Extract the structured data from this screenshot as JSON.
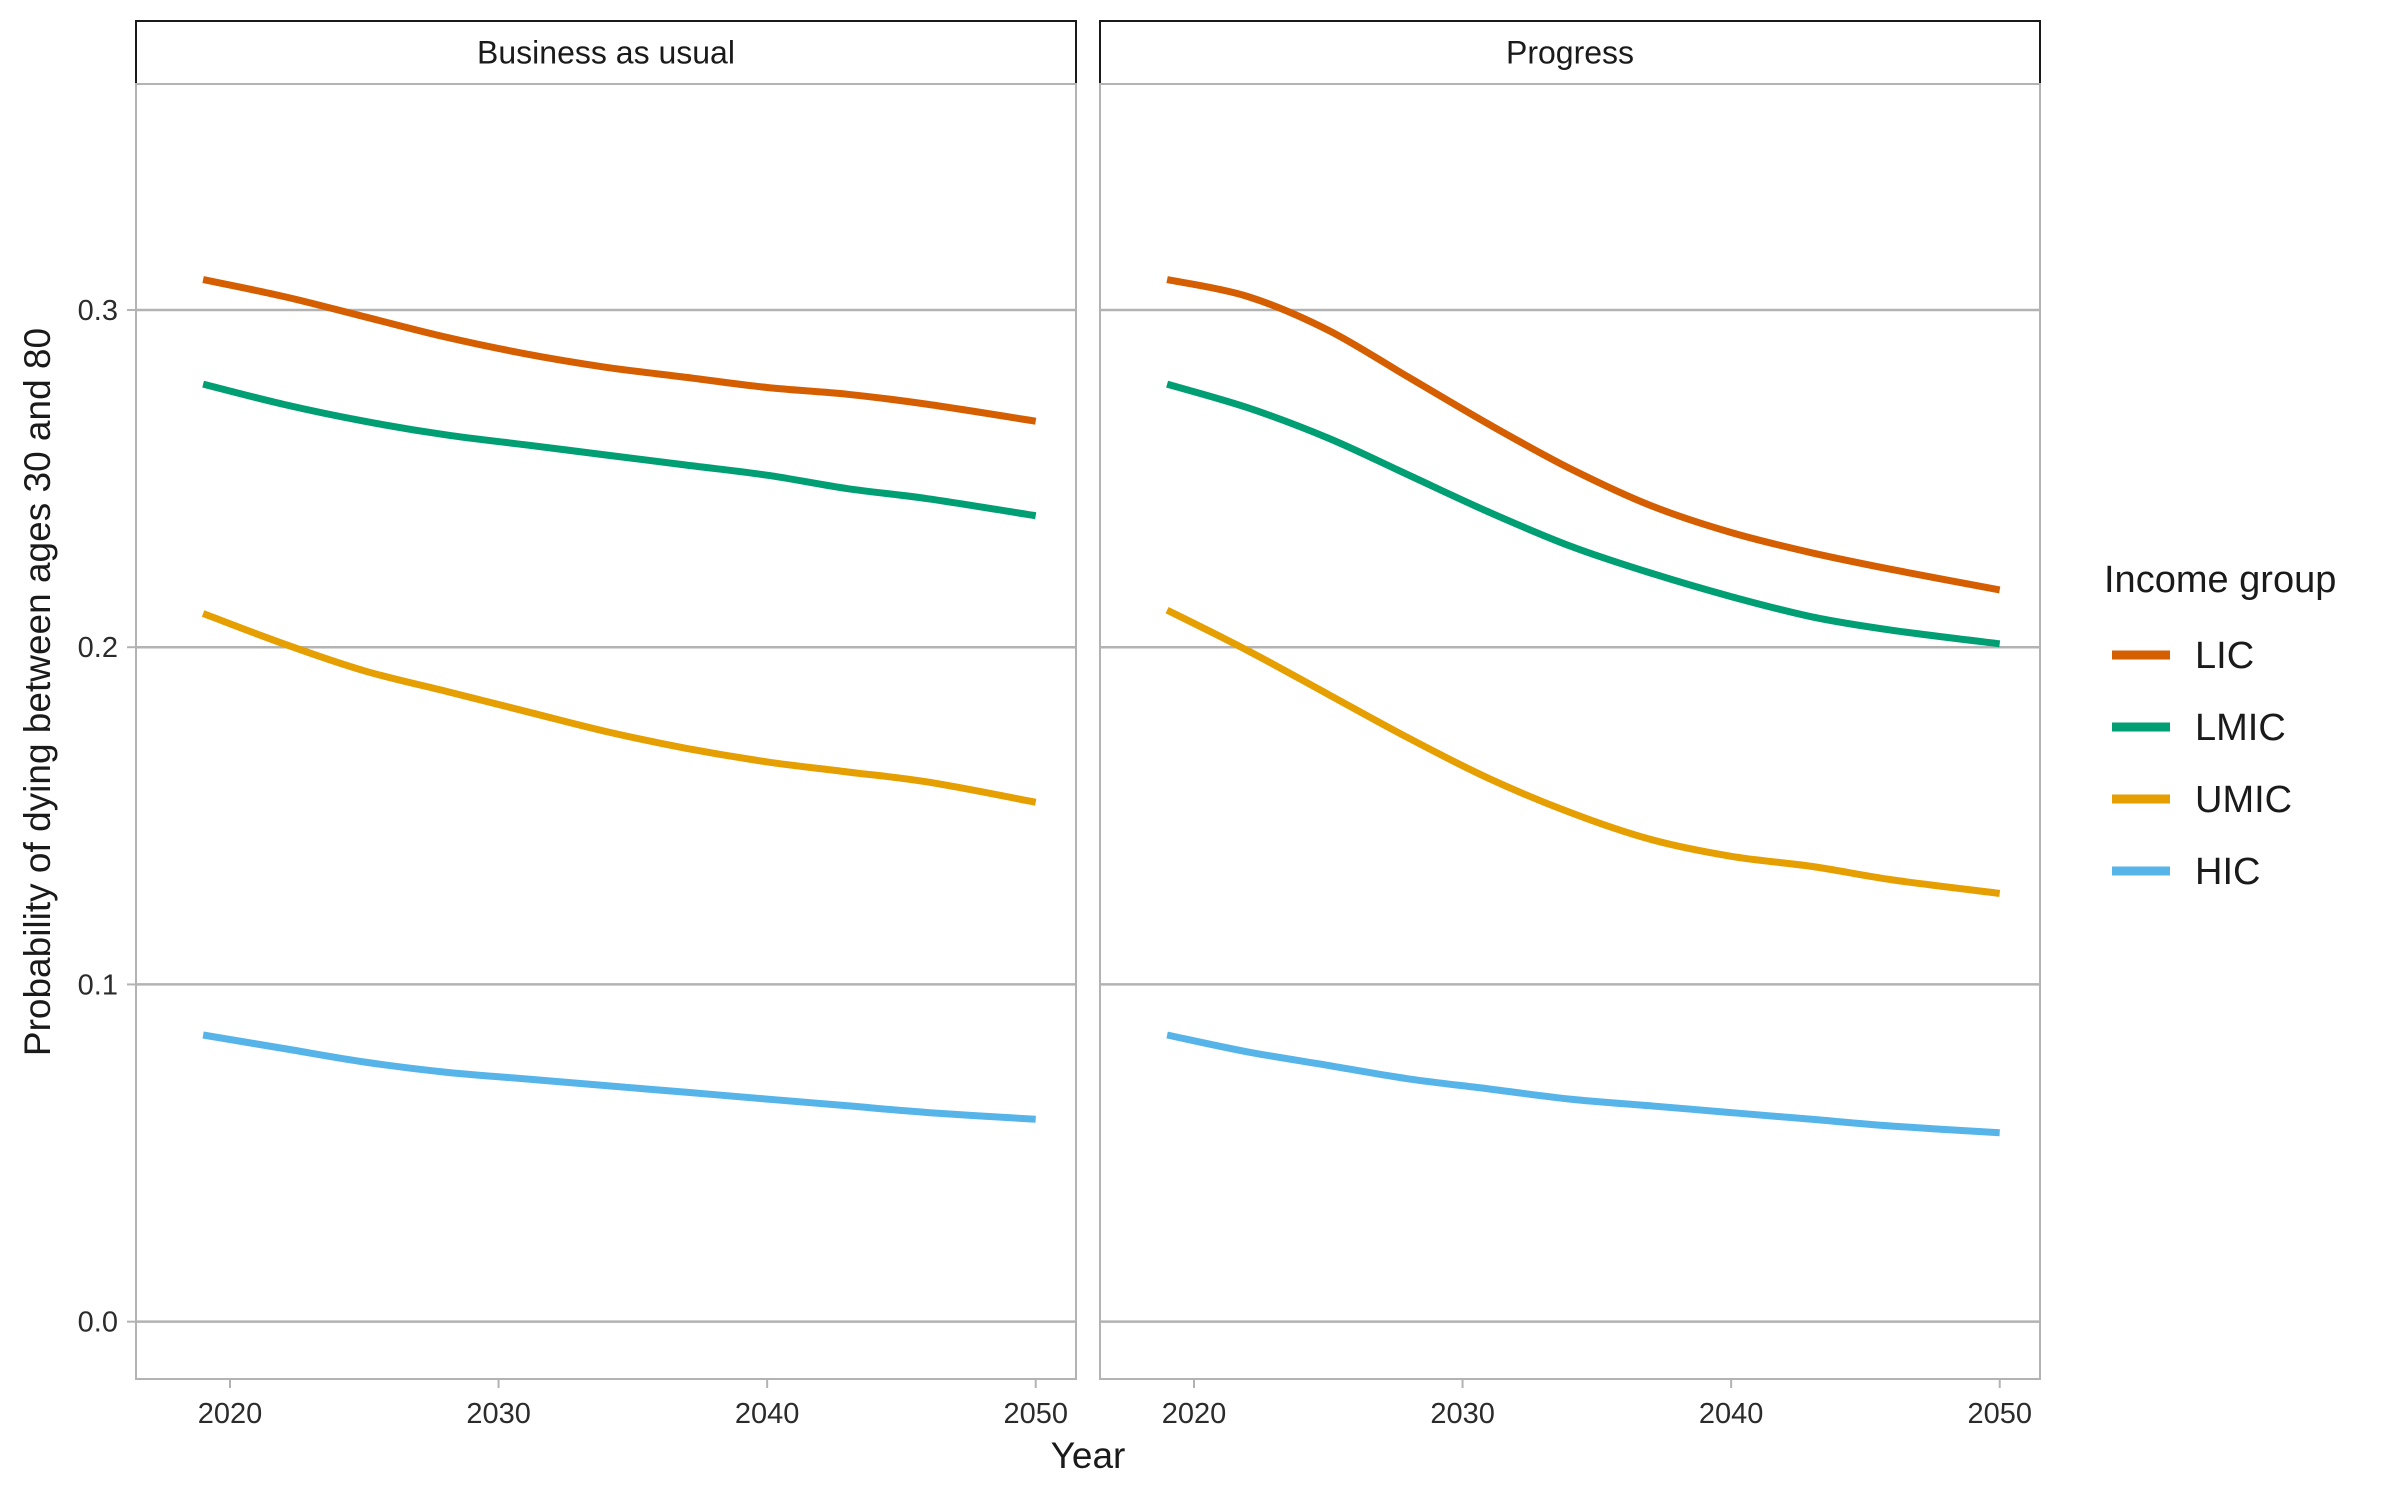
{
  "chart_data": {
    "type": "line",
    "facet_by": "scenario",
    "xlabel": "Year",
    "ylabel": "Probability of dying between ages 30 and 80",
    "xlim": [
      2016.5,
      2051.5
    ],
    "ylim": [
      -0.017,
      0.367
    ],
    "x_ticks": [
      2020,
      2030,
      2040,
      2050
    ],
    "y_ticks": [
      0.0,
      0.1,
      0.2,
      0.3
    ],
    "y_tick_labels": [
      "0.0",
      "0.1",
      "0.2",
      "0.3"
    ],
    "grid": "horizontal major",
    "legend": {
      "title": "Income group",
      "position": "right",
      "entries": [
        "LIC",
        "LMIC",
        "UMIC",
        "HIC"
      ]
    },
    "colors": {
      "LIC": "#D55E00",
      "LMIC": "#009E73",
      "UMIC": "#E69F00",
      "HIC": "#56B4E9"
    },
    "x": [
      2019,
      2022,
      2025,
      2028,
      2031,
      2034,
      2037,
      2040,
      2043,
      2046,
      2050
    ],
    "panels": [
      {
        "title": "Business as usual",
        "series": [
          {
            "name": "LIC",
            "values": [
              0.309,
              0.304,
              0.298,
              0.292,
              0.287,
              0.283,
              0.28,
              0.277,
              0.275,
              0.272,
              0.267
            ]
          },
          {
            "name": "LMIC",
            "values": [
              0.278,
              0.272,
              0.267,
              0.263,
              0.26,
              0.257,
              0.254,
              0.251,
              0.247,
              0.244,
              0.239
            ]
          },
          {
            "name": "UMIC",
            "values": [
              0.21,
              0.201,
              0.193,
              0.187,
              0.181,
              0.175,
              0.17,
              0.166,
              0.163,
              0.16,
              0.154
            ]
          },
          {
            "name": "HIC",
            "values": [
              0.085,
              0.081,
              0.077,
              0.074,
              0.072,
              0.07,
              0.068,
              0.066,
              0.064,
              0.062,
              0.06
            ]
          }
        ]
      },
      {
        "title": "Progress",
        "series": [
          {
            "name": "LIC",
            "values": [
              0.309,
              0.304,
              0.294,
              0.28,
              0.266,
              0.253,
              0.242,
              0.234,
              0.228,
              0.223,
              0.217
            ]
          },
          {
            "name": "LMIC",
            "values": [
              0.278,
              0.271,
              0.262,
              0.251,
              0.24,
              0.23,
              0.222,
              0.215,
              0.209,
              0.205,
              0.201
            ]
          },
          {
            "name": "UMIC",
            "values": [
              0.211,
              0.199,
              0.186,
              0.173,
              0.161,
              0.151,
              0.143,
              0.138,
              0.135,
              0.131,
              0.127
            ]
          },
          {
            "name": "HIC",
            "values": [
              0.085,
              0.08,
              0.076,
              0.072,
              0.069,
              0.066,
              0.064,
              0.062,
              0.06,
              0.058,
              0.056
            ]
          }
        ]
      }
    ]
  }
}
